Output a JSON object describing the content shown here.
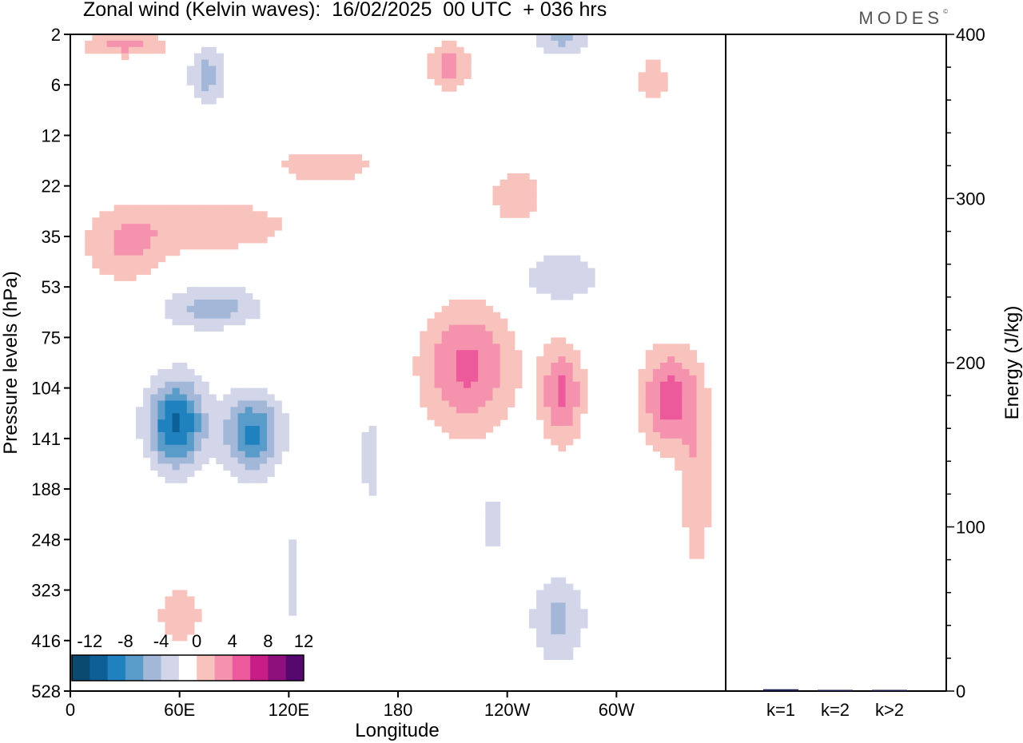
{
  "header": {
    "title": "Zonal wind (Kelvin waves):  16/02/2025  00 UTC  + 036 hrs",
    "brand": "MODES",
    "brand_mark": "©"
  },
  "colors": {
    "neg": [
      "#0b4a70",
      "#0e5f97",
      "#1f82bf",
      "#5a9cc9",
      "#a3b7d8",
      "#d2d6e8"
    ],
    "pos": [
      "#f8c3bd",
      "#f593ae",
      "#ec5a9c",
      "#c81d86",
      "#8d107c",
      "#57086f"
    ],
    "energy_bar": "#1f1f4f"
  },
  "chart_data": [
    {
      "type": "heatmap",
      "xlabel": "Longitude",
      "ylabel": "Pressure levels (hPa)",
      "x_ticks": [
        "0",
        "60E",
        "120E",
        "180",
        "120W",
        "60W"
      ],
      "x_tick_values": [
        0,
        60,
        120,
        180,
        240,
        300
      ],
      "xlim": [
        0,
        360
      ],
      "y_ticks": [
        "2",
        "6",
        "12",
        "22",
        "35",
        "53",
        "75",
        "104",
        "141",
        "188",
        "248",
        "323",
        "416",
        "528"
      ],
      "colorbar": {
        "labels": [
          "-12",
          "-8",
          "-4",
          "0",
          "4",
          "8",
          "12"
        ],
        "bounds": [
          -12,
          -10,
          -8,
          -6,
          -4,
          -2,
          2,
          4,
          6,
          8,
          10,
          12
        ]
      },
      "features": [
        {
          "lon": 58,
          "lev": 7.7,
          "dlon": 16,
          "dlev": 0.9,
          "value": -10.5
        },
        {
          "lon": 100,
          "lev": 7.9,
          "dlon": 16,
          "dlev": 0.8,
          "value": -8.5
        },
        {
          "lon": 78,
          "lev": 5.4,
          "dlon": 28,
          "dlev": 0.45,
          "value": -5
        },
        {
          "lon": 122,
          "lev": 10.8,
          "dlon": 4,
          "dlev": 1.0,
          "value": -3.5
        },
        {
          "lon": 165,
          "lev": 8.4,
          "dlon": 5,
          "dlev": 0.9,
          "value": -4
        },
        {
          "lon": 232,
          "lev": 9.7,
          "dlon": 3,
          "dlev": 0.8,
          "value": -4.5
        },
        {
          "lon": 268,
          "lev": 11.6,
          "dlon": 16,
          "dlev": 0.9,
          "value": -4.5
        },
        {
          "lon": 270,
          "lev": 4.8,
          "dlon": 25,
          "dlev": 0.6,
          "value": -3.5
        },
        {
          "lon": 75,
          "lev": 0.8,
          "dlon": 10,
          "dlev": 0.6,
          "value": -5
        },
        {
          "lon": 270,
          "lev": 0.1,
          "dlon": 16,
          "dlev": 0.35,
          "value": -4.5
        },
        {
          "lon": 245,
          "lev": 3.2,
          "dlon": 20,
          "dlev": 0.7,
          "value": 3
        },
        {
          "lon": 30,
          "lev": 4.2,
          "dlon": 24,
          "dlev": 0.8,
          "value": 4
        },
        {
          "lon": 82,
          "lev": 3.8,
          "dlon": 45,
          "dlev": 0.55,
          "value": 3.5
        },
        {
          "lon": 140,
          "lev": 2.6,
          "dlon": 35,
          "dlev": 0.45,
          "value": 3
        },
        {
          "lon": 218,
          "lev": 6.6,
          "dlon": 26,
          "dlev": 1.3,
          "value": 6.5
        },
        {
          "lon": 270,
          "lev": 7.1,
          "dlon": 12,
          "dlev": 1.0,
          "value": 6.5
        },
        {
          "lon": 328,
          "lev": 7.2,
          "dlon": 15,
          "dlev": 1.0,
          "value": 7
        },
        {
          "lon": 344,
          "lev": 8.8,
          "dlon": 10,
          "dlev": 2.2,
          "value": 3.5
        },
        {
          "lon": 60,
          "lev": 11.5,
          "dlon": 14,
          "dlev": 0.7,
          "value": 3.5
        },
        {
          "lon": 30,
          "lev": 0.2,
          "dlon": 25,
          "dlev": 0.25,
          "value": 5
        },
        {
          "lon": 208,
          "lev": 0.6,
          "dlon": 12,
          "dlev": 0.5,
          "value": 5
        },
        {
          "lon": 320,
          "lev": 0.9,
          "dlon": 8,
          "dlev": 0.5,
          "value": 4
        }
      ]
    },
    {
      "type": "bar",
      "categories": [
        "k=1",
        "k=2",
        "k>2"
      ],
      "values": [
        1.1,
        0.2,
        0.6
      ],
      "ylabel": "Energy (J/kg)",
      "ylim": [
        0,
        400
      ],
      "y_ticks": [
        0,
        100,
        200,
        300,
        400
      ]
    }
  ]
}
